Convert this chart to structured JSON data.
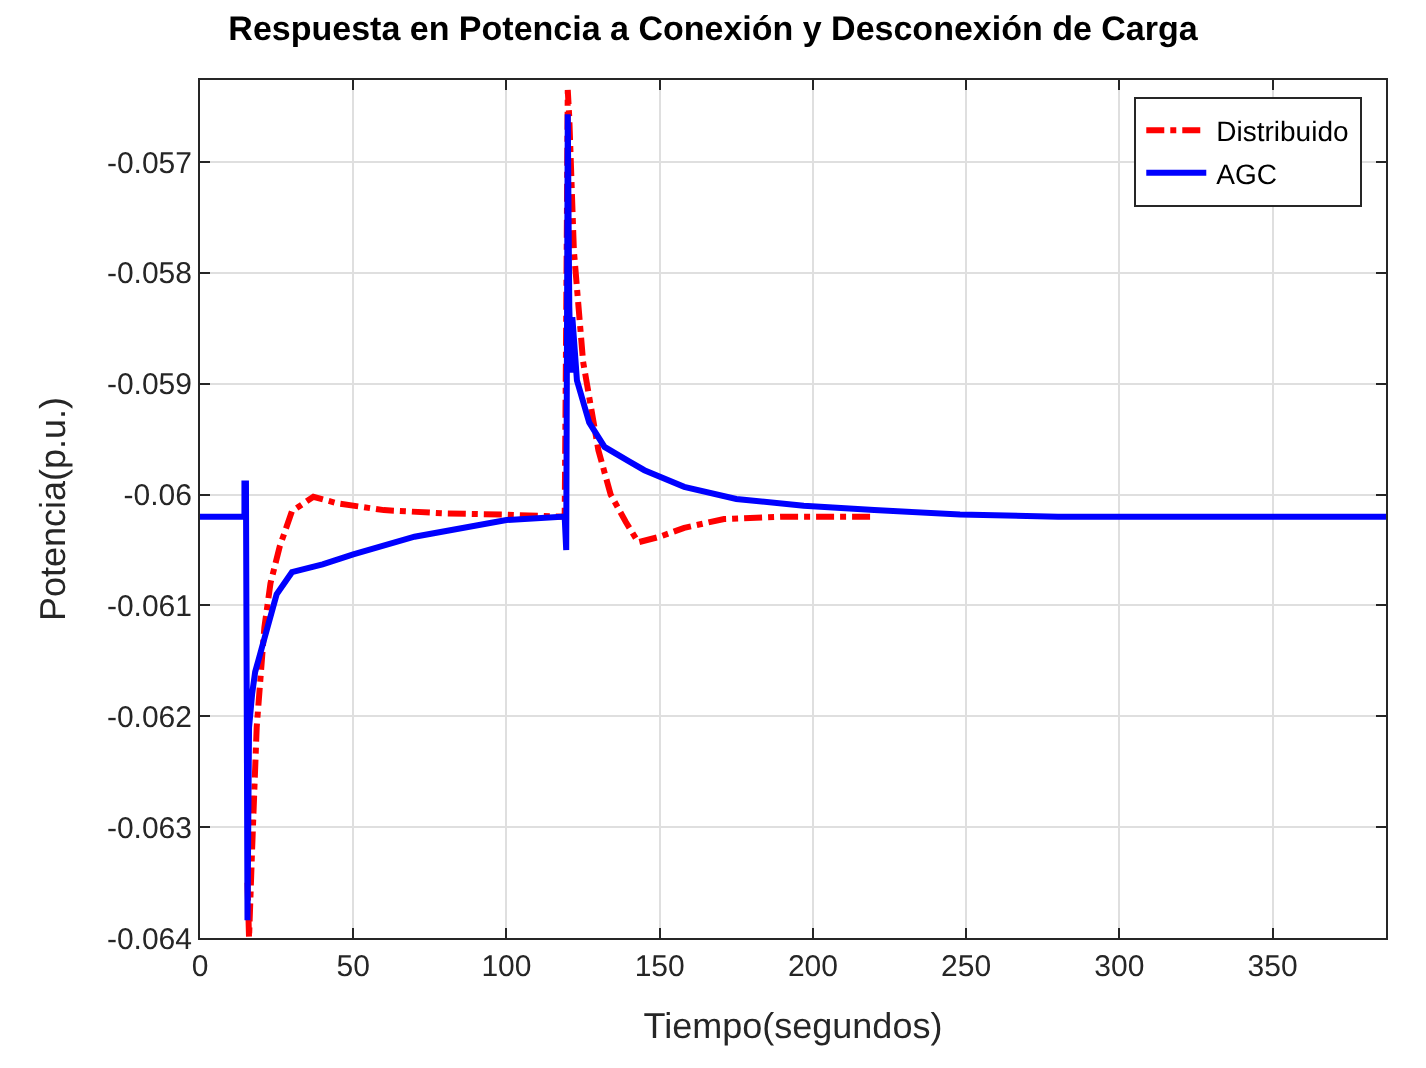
{
  "chart_data": {
    "type": "line",
    "title": "Respuesta en Potencia a Conexión y Desconexión de Carga",
    "xlabel": "Tiempo(segundos)",
    "ylabel": "Potencia(p.u.)",
    "xlim": [
      0,
      387
    ],
    "ylim": [
      -0.064,
      -0.05626
    ],
    "xticks": [
      0,
      50,
      100,
      150,
      200,
      250,
      300,
      350
    ],
    "yticks": [
      -0.064,
      -0.063,
      -0.062,
      -0.061,
      -0.06,
      -0.059,
      -0.058,
      -0.057
    ],
    "grid": true,
    "legend": "top right",
    "series": [
      {
        "name": "Distribuido",
        "color": "#ff0000",
        "line_style": "dashed",
        "x": [
          15.5,
          16,
          17,
          18.5,
          21,
          23,
          26,
          30,
          37,
          45,
          60,
          80,
          99,
          119,
          119.5,
          120,
          120.5,
          122,
          125,
          130,
          134,
          139,
          143,
          150,
          158,
          171,
          190,
          220
        ],
        "values": [
          -0.0635,
          -0.064,
          -0.0632,
          -0.0621,
          -0.0612,
          -0.0608,
          -0.06047,
          -0.06015,
          -0.06002,
          -0.06008,
          -0.06014,
          -0.06017,
          -0.06018,
          -0.0602,
          -0.0584,
          -0.05635,
          -0.0566,
          -0.0578,
          -0.0588,
          -0.0596,
          -0.06,
          -0.06025,
          -0.06043,
          -0.06038,
          -0.0603,
          -0.06022,
          -0.0602,
          -0.0602
        ]
      },
      {
        "name": "AGC",
        "color": "#0000ff",
        "line_style": "solid",
        "x": [
          0,
          14.5,
          14.5,
          15,
          15.5,
          16,
          17,
          18,
          20,
          25,
          30,
          40,
          50,
          70,
          100,
          118,
          119,
          119.5,
          120,
          120.5,
          121,
          121.5,
          123,
          127,
          132,
          140,
          145,
          158,
          175,
          197,
          220,
          248,
          280,
          387
        ],
        "values": [
          -0.0602,
          -0.0602,
          -0.0599,
          -0.0599,
          -0.06384,
          -0.0621,
          -0.0618,
          -0.0616,
          -0.0614,
          -0.0609,
          -0.0607,
          -0.06063,
          -0.06054,
          -0.06038,
          -0.06023,
          -0.0602,
          -0.0602,
          -0.0605,
          -0.05657,
          -0.0583,
          -0.0589,
          -0.0584,
          -0.05897,
          -0.05935,
          -0.05957,
          -0.0597,
          -0.05978,
          -0.05993,
          -0.06004,
          -0.0601,
          -0.06014,
          -0.06018,
          -0.0602,
          -0.0602
        ]
      }
    ]
  }
}
